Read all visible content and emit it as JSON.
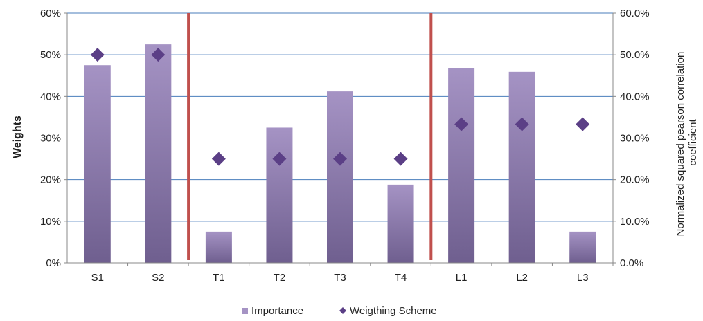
{
  "chart_data": {
    "type": "bar",
    "categories": [
      "S1",
      "S2",
      "T1",
      "T2",
      "T3",
      "T4",
      "L1",
      "L2",
      "L3"
    ],
    "series": [
      {
        "name": "Importance",
        "type": "bar",
        "axis": "right",
        "values": [
          47.5,
          52.5,
          7.5,
          32.5,
          41.2,
          18.8,
          46.8,
          45.9,
          7.5
        ]
      },
      {
        "name": "Weigthing Scheme",
        "type": "scatter",
        "marker": "diamond",
        "axis": "left",
        "values": [
          50,
          50,
          25,
          25,
          25,
          25,
          33.3,
          33.3,
          33.3
        ]
      }
    ],
    "ylabel": "Weights",
    "y2label_lines": [
      "Normalized squared pearson correlation",
      "coefficient"
    ],
    "ylim": [
      0,
      60
    ],
    "y2lim": [
      0,
      60
    ],
    "yticks": [
      "0%",
      "10%",
      "20%",
      "30%",
      "40%",
      "50%",
      "60%"
    ],
    "y2ticks": [
      "0.0%",
      "10.0%",
      "20.0%",
      "30.0%",
      "40.0%",
      "50.0%",
      "60.0%"
    ],
    "group_separators_after": [
      "S2",
      "T4"
    ],
    "grid": true,
    "legend_position": "bottom",
    "colors": {
      "bar_top": "#a593c4",
      "bar_bottom": "#6f5f8f",
      "marker": "#5b3f86",
      "separator": "#c0504d",
      "grid": "#4a7ebb"
    }
  }
}
